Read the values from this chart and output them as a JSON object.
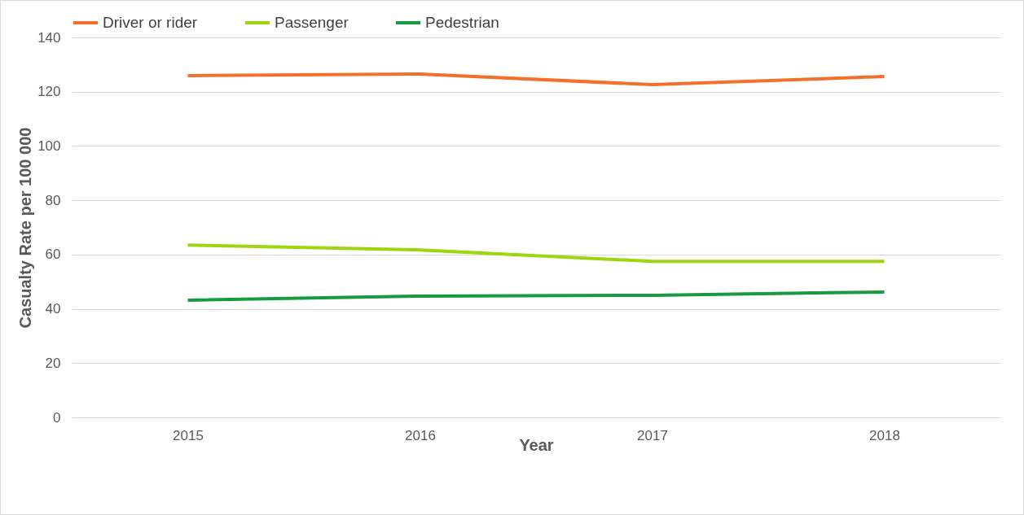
{
  "chart_data": {
    "type": "line",
    "xlabel": "Year",
    "ylabel": "Casualty Rate per 100 000",
    "categories": [
      "2015",
      "2016",
      "2017",
      "2018"
    ],
    "series": [
      {
        "name": "Driver or rider",
        "color": "#f4702a",
        "values": [
          125.9,
          126.5,
          122.6,
          125.6
        ]
      },
      {
        "name": "Passenger",
        "color": "#9cd60f",
        "values": [
          63.5,
          61.7,
          57.5,
          57.5
        ]
      },
      {
        "name": "Pedestrian",
        "color": "#169b3e",
        "values": [
          43.2,
          44.7,
          45.0,
          46.2
        ]
      }
    ],
    "ylim": [
      0,
      140
    ],
    "yticks": [
      0,
      20,
      40,
      60,
      80,
      100,
      120,
      140
    ],
    "grid": "y",
    "legend": "top left",
    "marker": "none",
    "line_style": "solid"
  }
}
